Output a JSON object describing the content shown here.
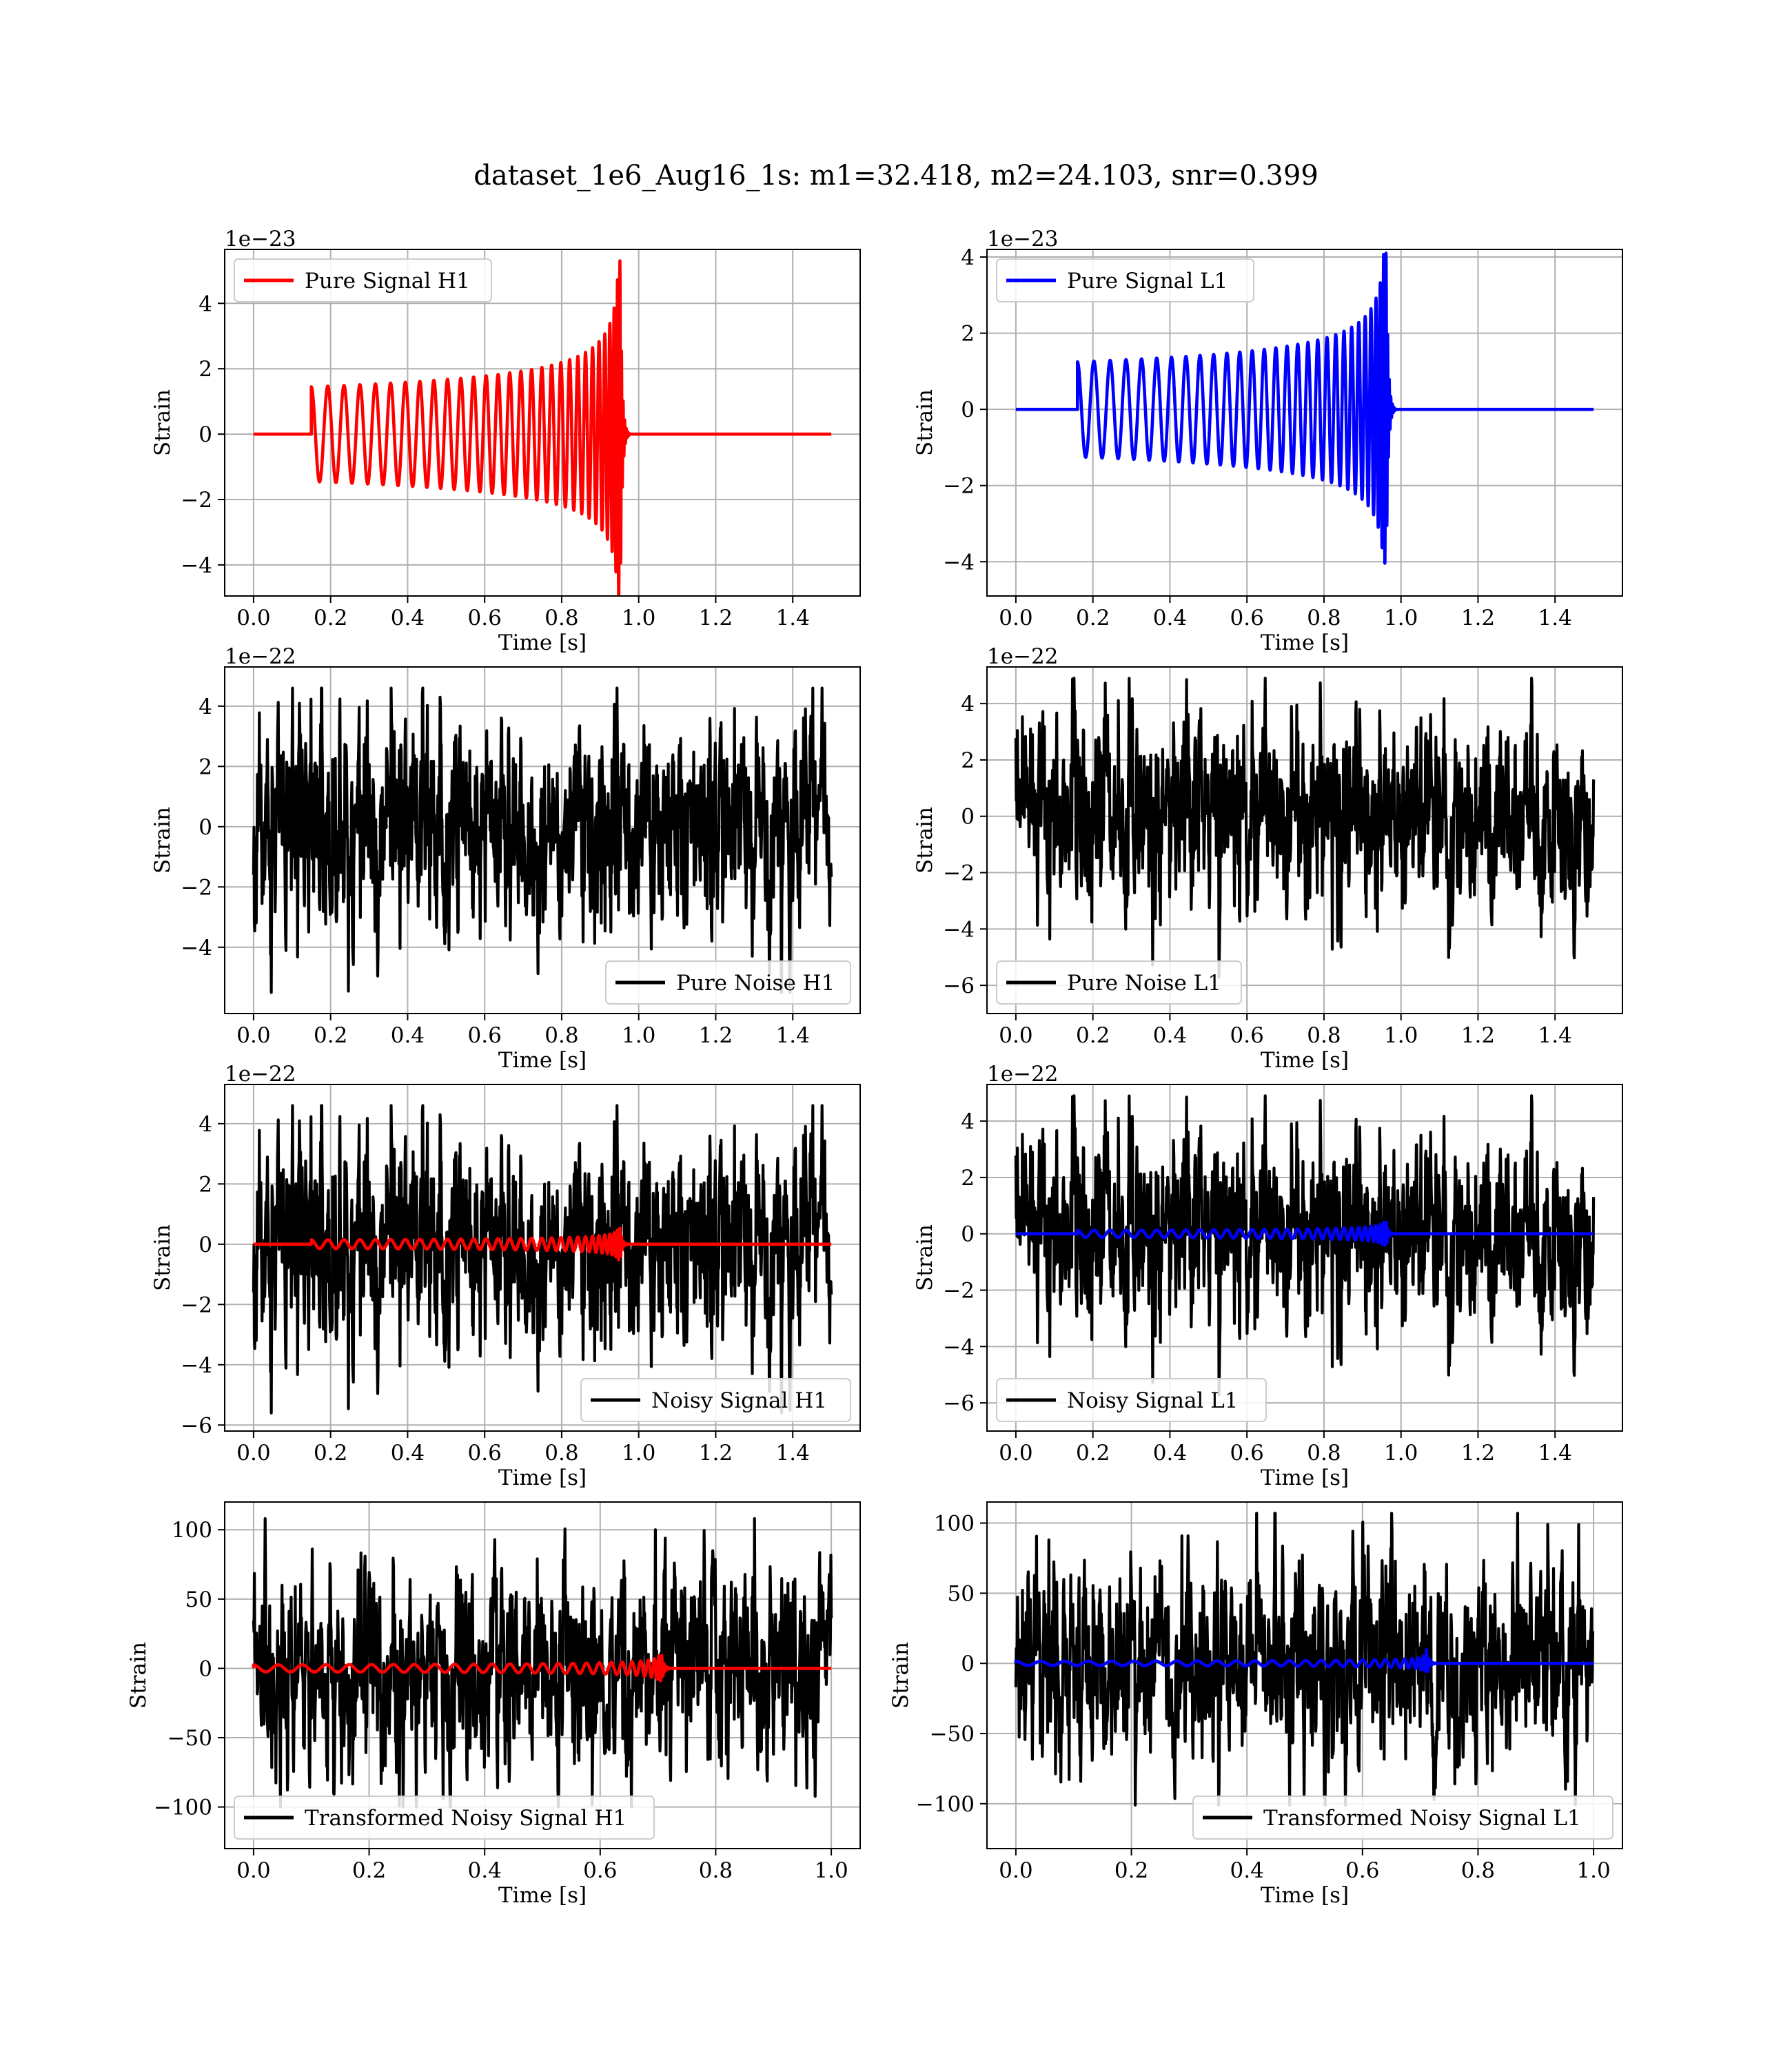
{
  "figure": {
    "title": "dataset_1e6_Aug16_1s: m1=32.418, m2=24.103, snr=0.399"
  },
  "chart_data": [
    {
      "id": "pure-signal-h1",
      "type": "line",
      "xlabel": "Time [s]",
      "ylabel": "Strain",
      "offset_text": "1e−23",
      "xlim": [
        -0.075,
        1.575
      ],
      "ylim": [
        -4.95,
        5.65
      ],
      "xticks": [
        0.0,
        0.2,
        0.4,
        0.6,
        0.8,
        1.0,
        1.2,
        1.4
      ],
      "xtick_labels": [
        "0.0",
        "0.2",
        "0.4",
        "0.6",
        "0.8",
        "1.0",
        "1.2",
        "1.4"
      ],
      "yticks": [
        -4,
        -2,
        0,
        2,
        4
      ],
      "ytick_labels": [
        "−4",
        "−2",
        "0",
        "2",
        "4"
      ],
      "legend": "upper left",
      "grid": true,
      "series": [
        {
          "name": "Pure Signal H1",
          "color": "#ff0000",
          "in_legend": true,
          "kind": "chirp",
          "params": {
            "x_start": 0.0,
            "x_end": 1.5,
            "t_start": 0.15,
            "t_merge": 0.952,
            "t_ring": 0.975,
            "amp_start": 1.45,
            "amp_peak": 5.3,
            "f_start": 23,
            "f_merge": 190
          }
        }
      ]
    },
    {
      "id": "pure-signal-l1",
      "type": "line",
      "xlabel": "Time [s]",
      "ylabel": "Strain",
      "offset_text": "1e−23",
      "xlim": [
        -0.075,
        1.575
      ],
      "ylim": [
        -4.9,
        4.2
      ],
      "xticks": [
        0.0,
        0.2,
        0.4,
        0.6,
        0.8,
        1.0,
        1.2,
        1.4
      ],
      "xtick_labels": [
        "0.0",
        "0.2",
        "0.4",
        "0.6",
        "0.8",
        "1.0",
        "1.2",
        "1.4"
      ],
      "yticks": [
        -4,
        -2,
        0,
        2,
        4
      ],
      "ytick_labels": [
        "−4",
        "−2",
        "0",
        "2",
        "4"
      ],
      "legend": "upper left",
      "grid": true,
      "series": [
        {
          "name": "Pure Signal L1",
          "color": "#0000ff",
          "in_legend": true,
          "kind": "chirp",
          "params": {
            "x_start": 0.0,
            "x_end": 1.5,
            "t_start": 0.16,
            "t_merge": 0.962,
            "t_ring": 0.985,
            "amp_start": 1.25,
            "amp_peak": 4.1,
            "f_start": 23,
            "f_merge": 190
          }
        }
      ]
    },
    {
      "id": "pure-noise-h1",
      "type": "line",
      "xlabel": "Time [s]",
      "ylabel": "Strain",
      "offset_text": "1e−22",
      "xlim": [
        -0.075,
        1.575
      ],
      "ylim": [
        -6.2,
        5.3
      ],
      "xticks": [
        0.0,
        0.2,
        0.4,
        0.6,
        0.8,
        1.0,
        1.2,
        1.4
      ],
      "xtick_labels": [
        "0.0",
        "0.2",
        "0.4",
        "0.6",
        "0.8",
        "1.0",
        "1.2",
        "1.4"
      ],
      "yticks": [
        -4,
        -2,
        0,
        2,
        4
      ],
      "ytick_labels": [
        "−4",
        "−2",
        "0",
        "2",
        "4"
      ],
      "legend": "lower right",
      "grid": true,
      "series": [
        {
          "name": "Pure Noise H1",
          "color": "#000000",
          "in_legend": true,
          "kind": "noise",
          "params": {
            "x_start": 0.0,
            "x_end": 1.5,
            "n": 1500,
            "sigma": 1.4,
            "min": -5.5,
            "max": 4.6,
            "seed": 11
          }
        }
      ]
    },
    {
      "id": "pure-noise-l1",
      "type": "line",
      "xlabel": "Time [s]",
      "ylabel": "Strain",
      "offset_text": "1e−22",
      "xlim": [
        -0.075,
        1.575
      ],
      "ylim": [
        -7.0,
        5.3
      ],
      "xticks": [
        0.0,
        0.2,
        0.4,
        0.6,
        0.8,
        1.0,
        1.2,
        1.4
      ],
      "xtick_labels": [
        "0.0",
        "0.2",
        "0.4",
        "0.6",
        "0.8",
        "1.0",
        "1.2",
        "1.4"
      ],
      "yticks": [
        -6,
        -4,
        -2,
        0,
        2,
        4
      ],
      "ytick_labels": [
        "−6",
        "−4",
        "−2",
        "0",
        "2",
        "4"
      ],
      "legend": "lower left",
      "grid": true,
      "series": [
        {
          "name": "Pure Noise L1",
          "color": "#000000",
          "in_legend": true,
          "kind": "noise",
          "params": {
            "x_start": 0.0,
            "x_end": 1.5,
            "n": 1500,
            "sigma": 1.4,
            "min": -6.3,
            "max": 4.9,
            "seed": 23
          }
        }
      ]
    },
    {
      "id": "noisy-signal-h1",
      "type": "line",
      "xlabel": "Time [s]",
      "ylabel": "Strain",
      "offset_text": "1e−22",
      "xlim": [
        -0.075,
        1.575
      ],
      "ylim": [
        -6.2,
        5.3
      ],
      "xticks": [
        0.0,
        0.2,
        0.4,
        0.6,
        0.8,
        1.0,
        1.2,
        1.4
      ],
      "xtick_labels": [
        "0.0",
        "0.2",
        "0.4",
        "0.6",
        "0.8",
        "1.0",
        "1.2",
        "1.4"
      ],
      "yticks": [
        -6,
        -4,
        -2,
        0,
        2,
        4
      ],
      "ytick_labels": [
        "−6",
        "−4",
        "−2",
        "0",
        "2",
        "4"
      ],
      "legend": "lower right",
      "grid": true,
      "series": [
        {
          "name": "Noisy Signal H1",
          "color": "#000000",
          "in_legend": true,
          "kind": "noise",
          "params": {
            "x_start": 0.0,
            "x_end": 1.5,
            "n": 1500,
            "sigma": 1.4,
            "min": -5.6,
            "max": 4.6,
            "seed": 11
          }
        },
        {
          "name": "",
          "color": "#ff0000",
          "in_legend": false,
          "kind": "chirp",
          "params": {
            "x_start": 0.0,
            "x_end": 1.5,
            "t_start": 0.15,
            "t_merge": 0.952,
            "t_ring": 0.975,
            "amp_start": 0.145,
            "amp_peak": 0.53,
            "f_start": 23,
            "f_merge": 190
          }
        }
      ]
    },
    {
      "id": "noisy-signal-l1",
      "type": "line",
      "xlabel": "Time [s]",
      "ylabel": "Strain",
      "offset_text": "1e−22",
      "xlim": [
        -0.075,
        1.575
      ],
      "ylim": [
        -7.0,
        5.3
      ],
      "xticks": [
        0.0,
        0.2,
        0.4,
        0.6,
        0.8,
        1.0,
        1.2,
        1.4
      ],
      "xtick_labels": [
        "0.0",
        "0.2",
        "0.4",
        "0.6",
        "0.8",
        "1.0",
        "1.2",
        "1.4"
      ],
      "yticks": [
        -6,
        -4,
        -2,
        0,
        2,
        4
      ],
      "ytick_labels": [
        "−6",
        "−4",
        "−2",
        "0",
        "2",
        "4"
      ],
      "legend": "lower left",
      "grid": true,
      "series": [
        {
          "name": "Noisy Signal L1",
          "color": "#000000",
          "in_legend": true,
          "kind": "noise",
          "params": {
            "x_start": 0.0,
            "x_end": 1.5,
            "n": 1500,
            "sigma": 1.4,
            "min": -6.3,
            "max": 4.9,
            "seed": 23
          }
        },
        {
          "name": "",
          "color": "#0000ff",
          "in_legend": false,
          "kind": "chirp",
          "params": {
            "x_start": 0.0,
            "x_end": 1.5,
            "t_start": 0.16,
            "t_merge": 0.962,
            "t_ring": 0.985,
            "amp_start": 0.125,
            "amp_peak": 0.41,
            "f_start": 23,
            "f_merge": 190
          }
        }
      ]
    },
    {
      "id": "transformed-noisy-signal-h1",
      "type": "line",
      "xlabel": "Time [s]",
      "ylabel": "Strain",
      "offset_text": "",
      "xlim": [
        -0.05,
        1.05
      ],
      "ylim": [
        -130,
        120
      ],
      "xticks": [
        0.0,
        0.2,
        0.4,
        0.6,
        0.8,
        1.0
      ],
      "xtick_labels": [
        "0.0",
        "0.2",
        "0.4",
        "0.6",
        "0.8",
        "1.0"
      ],
      "yticks": [
        -100,
        -50,
        0,
        50,
        100
      ],
      "ytick_labels": [
        "−100",
        "−50",
        "0",
        "50",
        "100"
      ],
      "legend": "lower left",
      "grid": true,
      "series": [
        {
          "name": "Transformed Noisy Signal H1",
          "color": "#000000",
          "in_legend": true,
          "kind": "noise",
          "params": {
            "x_start": 0.0,
            "x_end": 1.0,
            "n": 1400,
            "sigma": 30,
            "min": -100,
            "max": 108,
            "seed": 37
          }
        },
        {
          "name": "",
          "color": "#ff0000",
          "in_legend": false,
          "kind": "chirp",
          "params": {
            "x_start": 0.0,
            "x_end": 1.0,
            "t_start": 0.0,
            "t_merge": 0.705,
            "t_ring": 0.725,
            "amp_start": 2.5,
            "amp_peak": 14,
            "f_start": 23,
            "f_merge": 190
          }
        }
      ]
    },
    {
      "id": "transformed-noisy-signal-l1",
      "type": "line",
      "xlabel": "Time [s]",
      "ylabel": "Strain",
      "offset_text": "",
      "xlim": [
        -0.05,
        1.05
      ],
      "ylim": [
        -132,
        115
      ],
      "xticks": [
        0.0,
        0.2,
        0.4,
        0.6,
        0.8,
        1.0
      ],
      "xtick_labels": [
        "0.0",
        "0.2",
        "0.4",
        "0.6",
        "0.8",
        "1.0"
      ],
      "yticks": [
        -100,
        -50,
        0,
        50,
        100
      ],
      "ytick_labels": [
        "−100",
        "−50",
        "0",
        "50",
        "100"
      ],
      "legend": "lower right",
      "grid": true,
      "series": [
        {
          "name": "Transformed Noisy Signal L1",
          "color": "#000000",
          "in_legend": true,
          "kind": "noise",
          "params": {
            "x_start": 0.0,
            "x_end": 1.0,
            "n": 1400,
            "sigma": 30,
            "min": -101,
            "max": 107,
            "seed": 41
          }
        },
        {
          "name": "",
          "color": "#0000ff",
          "in_legend": false,
          "kind": "chirp",
          "params": {
            "x_start": 0.0,
            "x_end": 1.0,
            "t_start": 0.0,
            "t_merge": 0.71,
            "t_ring": 0.73,
            "amp_start": 1.5,
            "amp_peak": 12,
            "f_start": 23,
            "f_merge": 190
          }
        }
      ]
    }
  ]
}
